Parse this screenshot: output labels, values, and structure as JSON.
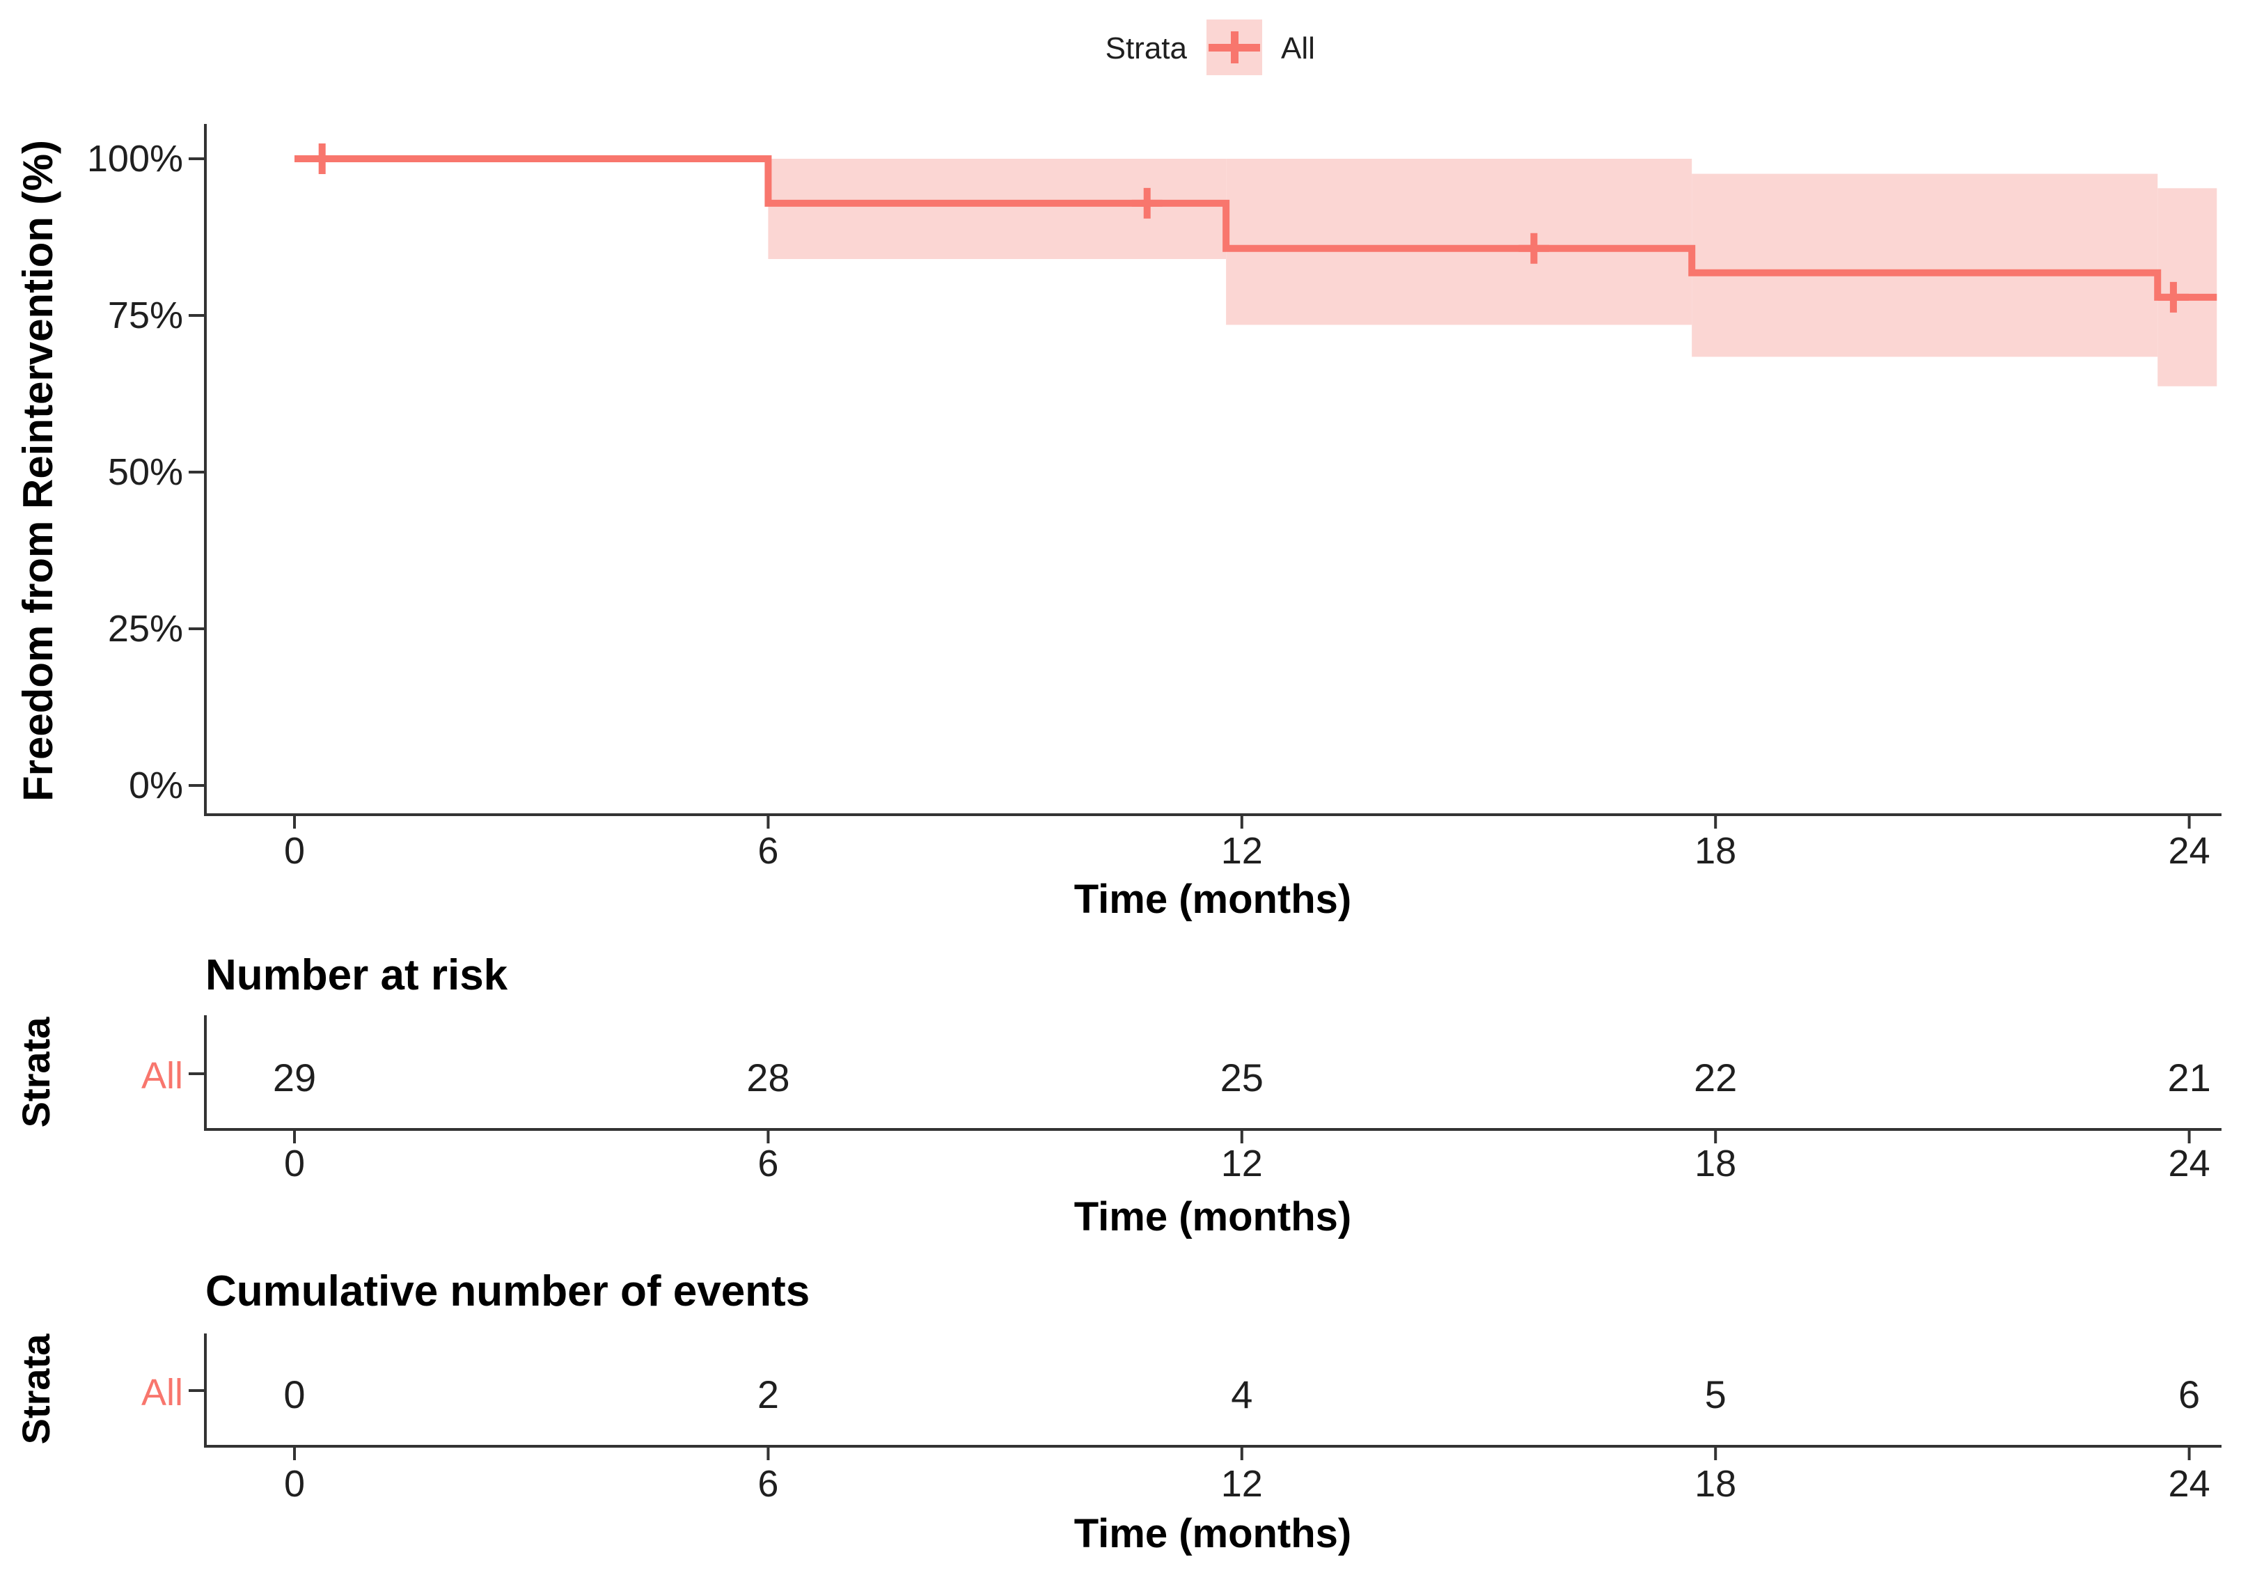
{
  "figure": {
    "background": "#FFFFFF",
    "colors": {
      "stroke": "#F8766D",
      "ribbon": "#FBD6D3",
      "axis": "#333333",
      "tick_text": "#1F1F1F",
      "title_text": "#000000"
    },
    "legend": {
      "title": "Strata",
      "item": "All"
    },
    "main_plot": {
      "y_title": "Freedom from Reintervention (%)",
      "x_title": "Time (months)",
      "y_tick_labels": [
        "100%",
        "75%",
        "50%",
        "25%",
        "0%"
      ],
      "x_tick_labels": [
        "0",
        "6",
        "12",
        "18",
        "24"
      ]
    },
    "risk_table": {
      "title": "Number at risk",
      "axis_label": "Strata",
      "row_label": "All",
      "values": [
        "29",
        "28",
        "25",
        "22",
        "21"
      ],
      "x_tick_labels": [
        "0",
        "6",
        "12",
        "18",
        "24"
      ],
      "x_title": "Time (months)"
    },
    "events_table": {
      "title": "Cumulative number of events",
      "axis_label": "Strata",
      "row_label": "All",
      "values": [
        "0",
        "2",
        "4",
        "5",
        "6"
      ],
      "x_tick_labels": [
        "0",
        "6",
        "12",
        "18",
        "24"
      ],
      "x_title": "Time (months)"
    }
  },
  "chart_data": {
    "type": "line",
    "subtype": "kaplan-meier-step",
    "title": "",
    "xlabel": "Time (months)",
    "ylabel": "Freedom from Reintervention (%)",
    "xlim": [
      0,
      24.4
    ],
    "ylim": [
      0,
      100
    ],
    "x_ticks": [
      0,
      6,
      12,
      18,
      24
    ],
    "y_ticks_percent": [
      100,
      75,
      50,
      25,
      0
    ],
    "grid": false,
    "legend_position": "top",
    "series": [
      {
        "name": "All",
        "color": "#F8766D",
        "ci_fill": "#FBD6D3",
        "survival_steps": [
          {
            "t_start": 0,
            "t_end": 6,
            "survival_pct": 100,
            "ci_low_pct": 100,
            "ci_high_pct": 100
          },
          {
            "t_start": 6,
            "t_end": 11.8,
            "survival_pct": 92.9,
            "ci_low_pct": 84,
            "ci_high_pct": 100
          },
          {
            "t_start": 11.8,
            "t_end": 17.7,
            "survival_pct": 85.7,
            "ci_low_pct": 73.5,
            "ci_high_pct": 100
          },
          {
            "t_start": 17.7,
            "t_end": 23.6,
            "survival_pct": 81.8,
            "ci_low_pct": 68.4,
            "ci_high_pct": 97.6
          },
          {
            "t_start": 23.6,
            "t_end": 24.35,
            "survival_pct": 77.9,
            "ci_low_pct": 63.7,
            "ci_high_pct": 95.3
          }
        ],
        "censor_marks": [
          {
            "t": 0.35,
            "survival_pct": 100
          },
          {
            "t": 10.8,
            "survival_pct": 92.9
          },
          {
            "t": 15.7,
            "survival_pct": 85.7
          },
          {
            "t": 23.8,
            "survival_pct": 77.9
          }
        ]
      }
    ],
    "number_at_risk": {
      "time": [
        0,
        6,
        12,
        18,
        24
      ],
      "All": [
        29,
        28,
        25,
        22,
        21
      ]
    },
    "cumulative_events": {
      "time": [
        0,
        6,
        12,
        18,
        24
      ],
      "All": [
        0,
        2,
        4,
        5,
        6
      ]
    }
  }
}
